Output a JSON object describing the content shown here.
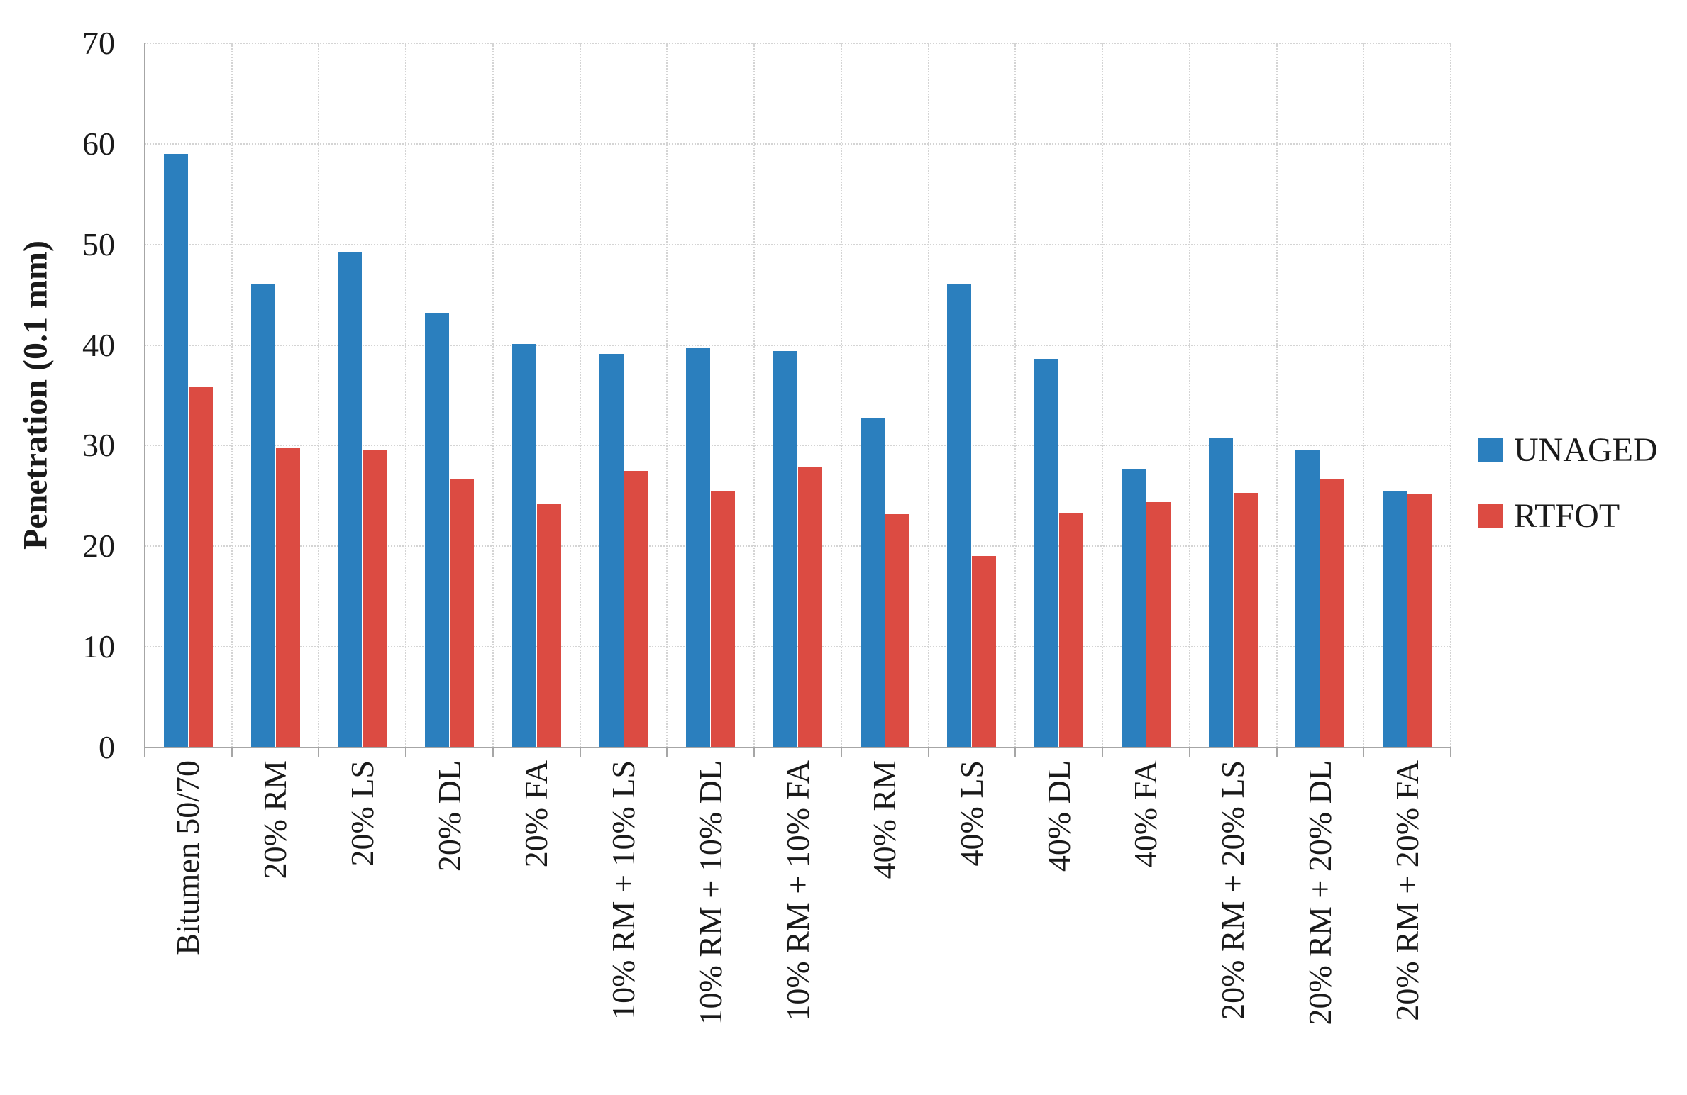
{
  "figure": {
    "background_color": "#ffffff",
    "text_color": "#1a1a1a",
    "gridline_color": "#d4d4d4",
    "axis_color": "#a6a6a6"
  },
  "chart_data": {
    "type": "bar",
    "title": "",
    "xlabel": "",
    "ylabel": "Penetration (0.1 mm)",
    "ylim": [
      0,
      70
    ],
    "yticks": [
      0,
      10,
      20,
      30,
      40,
      50,
      60,
      70
    ],
    "grid": "light gray dotted, horizontal and vertical",
    "legend_position": "right",
    "categories": [
      "Bitumen 50/70",
      "20% RM",
      "20% LS",
      "20% DL",
      "20% FA",
      "10% RM + 10% LS",
      "10% RM + 10% DL",
      "10% RM + 10% FA",
      "40% RM",
      "40% LS",
      "40% DL",
      "40% FA",
      "20% RM + 20% LS",
      "20% RM + 20% DL",
      "20% RM + 20% FA"
    ],
    "series": [
      {
        "name": "UNAGED",
        "color": "#2b7fbe",
        "values": [
          59,
          46,
          49.2,
          43.2,
          40.1,
          39.1,
          39.7,
          39.4,
          32.7,
          46.1,
          38.6,
          27.7,
          30.8,
          29.6,
          25.5
        ]
      },
      {
        "name": "RTFOT",
        "color": "#dc4b42",
        "values": [
          35.8,
          29.8,
          29.6,
          26.7,
          24.2,
          27.5,
          25.5,
          27.9,
          23.2,
          19,
          23.3,
          24.4,
          25.3,
          26.7,
          25.2
        ]
      }
    ]
  }
}
